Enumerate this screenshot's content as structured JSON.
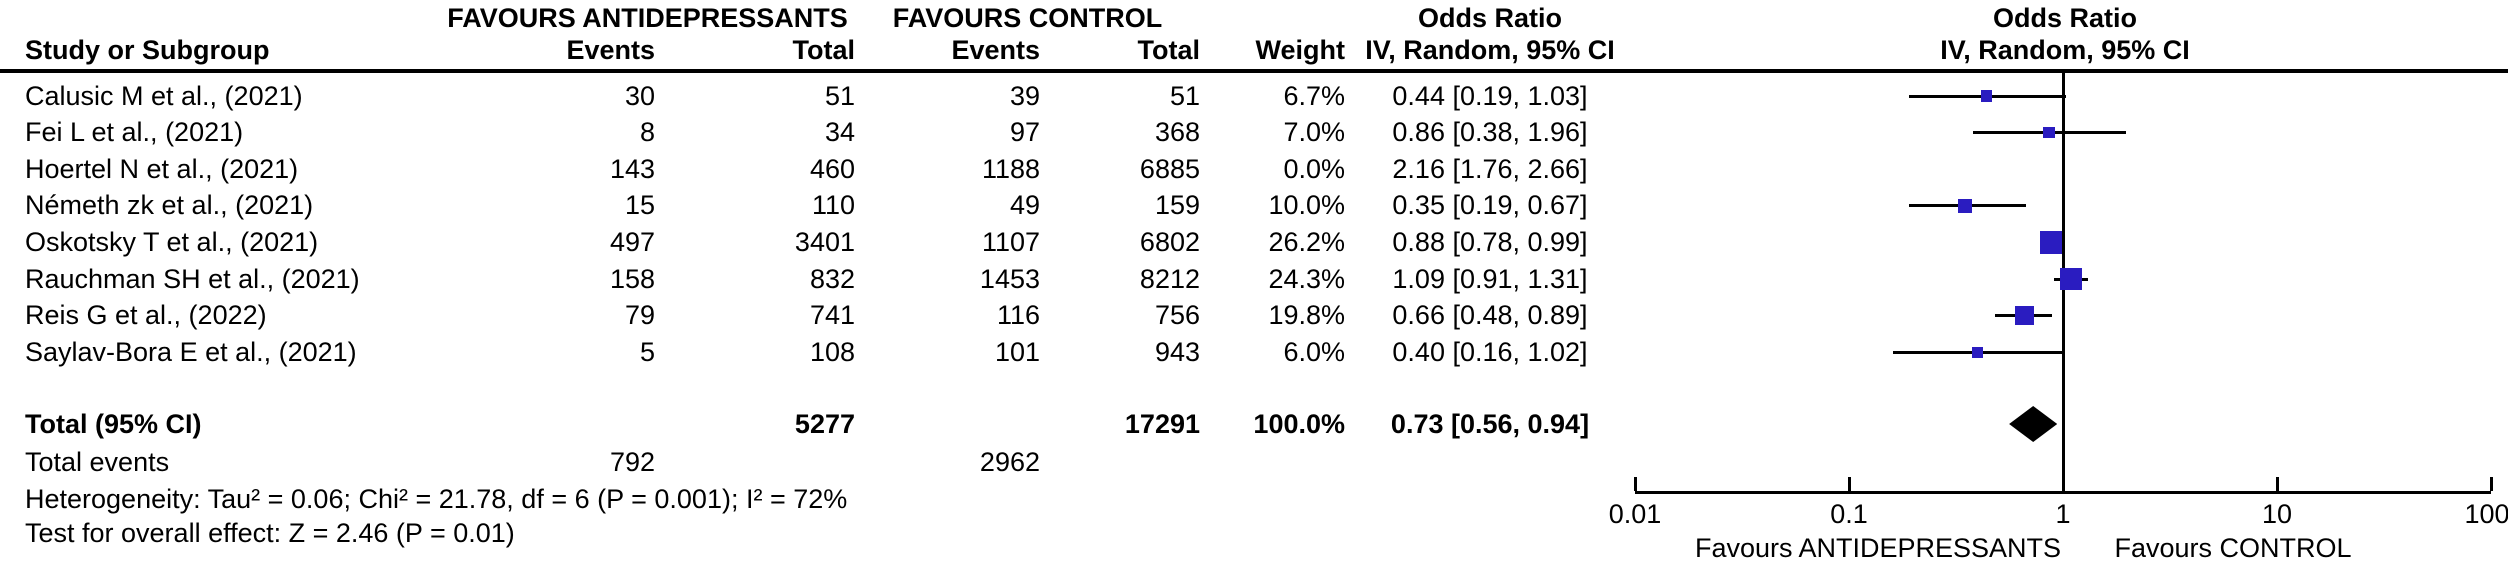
{
  "table": {
    "group_headers": {
      "favours_antidepressants": "FAVOURS ANTIDEPRESSANTS",
      "favours_control": "FAVOURS CONTROL",
      "odds_ratio_text": "Odds Ratio",
      "odds_ratio_plot": "Odds Ratio"
    },
    "columns": {
      "study": "Study or Subgroup",
      "events_t": "Events",
      "total_t": "Total",
      "events_c": "Events",
      "total_c": "Total",
      "weight": "Weight",
      "or_ci": "IV, Random, 95% CI",
      "or_ci_plot": "IV, Random, 95% CI"
    },
    "rows": [
      {
        "study": "Calusic M et al., (2021)",
        "events_t": "30",
        "total_t": "51",
        "events_c": "39",
        "total_c": "51",
        "weight": "6.7%",
        "or_ci": "0.44 [0.19, 1.03]"
      },
      {
        "study": "Fei L et al., (2021)",
        "events_t": "8",
        "total_t": "34",
        "events_c": "97",
        "total_c": "368",
        "weight": "7.0%",
        "or_ci": "0.86 [0.38, 1.96]"
      },
      {
        "study": "Hoertel N et al., (2021)",
        "events_t": "143",
        "total_t": "460",
        "events_c": "1188",
        "total_c": "6885",
        "weight": "0.0%",
        "or_ci": "2.16 [1.76, 2.66]"
      },
      {
        "study": "Németh zk et al., (2021)",
        "events_t": "15",
        "total_t": "110",
        "events_c": "49",
        "total_c": "159",
        "weight": "10.0%",
        "or_ci": "0.35 [0.19, 0.67]"
      },
      {
        "study": "Oskotsky T et al., (2021)",
        "events_t": "497",
        "total_t": "3401",
        "events_c": "1107",
        "total_c": "6802",
        "weight": "26.2%",
        "or_ci": "0.88 [0.78, 0.99]"
      },
      {
        "study": "Rauchman SH et al., (2021)",
        "events_t": "158",
        "total_t": "832",
        "events_c": "1453",
        "total_c": "8212",
        "weight": "24.3%",
        "or_ci": "1.09 [0.91, 1.31]"
      },
      {
        "study": "Reis G et al., (2022)",
        "events_t": "79",
        "total_t": "741",
        "events_c": "116",
        "total_c": "756",
        "weight": "19.8%",
        "or_ci": "0.66 [0.48, 0.89]"
      },
      {
        "study": "Saylav-Bora E et al., (2021)",
        "events_t": "5",
        "total_t": "108",
        "events_c": "101",
        "total_c": "943",
        "weight": "6.0%",
        "or_ci": "0.40 [0.16, 1.02]"
      }
    ],
    "total_row": {
      "label": "Total (95% CI)",
      "total_t": "5277",
      "total_c": "17291",
      "weight": "100.0%",
      "or_ci": "0.73 [0.56, 0.94]"
    },
    "total_events_row": {
      "label": "Total events",
      "events_t": "792",
      "events_c": "2962"
    },
    "heterogeneity": "Heterogeneity: Tau² = 0.06; Chi² = 21.78, df = 6 (P = 0.001); I² = 72%",
    "overall_effect": "Test for overall effect: Z = 2.46 (P = 0.01)"
  },
  "chart_data": {
    "type": "forest",
    "scale": "log10",
    "effect_measure": "Odds Ratio, IV, Random, 95% CI",
    "null_line": 1,
    "axis_ticks": [
      0.01,
      0.1,
      1,
      10,
      100
    ],
    "axis_tick_labels": [
      "0.01",
      "0.1",
      "1",
      "10",
      "100"
    ],
    "xlabel_left": "Favours ANTIDEPRESSANTS",
    "xlabel_right": "Favours CONTROL",
    "marker_color": "#2a1cc0",
    "diamond_color": "#000000",
    "studies": [
      {
        "name": "Calusic M et al., (2021)",
        "or": 0.44,
        "ci_low": 0.19,
        "ci_high": 1.03,
        "weight_pct": 6.7,
        "plotted": true
      },
      {
        "name": "Fei L et al., (2021)",
        "or": 0.86,
        "ci_low": 0.38,
        "ci_high": 1.96,
        "weight_pct": 7.0,
        "plotted": true
      },
      {
        "name": "Hoertel N et al., (2021)",
        "or": 2.16,
        "ci_low": 1.76,
        "ci_high": 2.66,
        "weight_pct": 0.0,
        "plotted": false
      },
      {
        "name": "Németh zk et al., (2021)",
        "or": 0.35,
        "ci_low": 0.19,
        "ci_high": 0.67,
        "weight_pct": 10.0,
        "plotted": true
      },
      {
        "name": "Oskotsky T et al., (2021)",
        "or": 0.88,
        "ci_low": 0.78,
        "ci_high": 0.99,
        "weight_pct": 26.2,
        "plotted": true
      },
      {
        "name": "Rauchman SH et al., (2021)",
        "or": 1.09,
        "ci_low": 0.91,
        "ci_high": 1.31,
        "weight_pct": 24.3,
        "plotted": true
      },
      {
        "name": "Reis G et al., (2022)",
        "or": 0.66,
        "ci_low": 0.48,
        "ci_high": 0.89,
        "weight_pct": 19.8,
        "plotted": true
      },
      {
        "name": "Saylav-Bora E et al., (2021)",
        "or": 0.4,
        "ci_low": 0.16,
        "ci_high": 1.02,
        "weight_pct": 6.0,
        "plotted": true
      }
    ],
    "total": {
      "label": "Total (95% CI)",
      "or": 0.73,
      "ci_low": 0.56,
      "ci_high": 0.94
    }
  }
}
